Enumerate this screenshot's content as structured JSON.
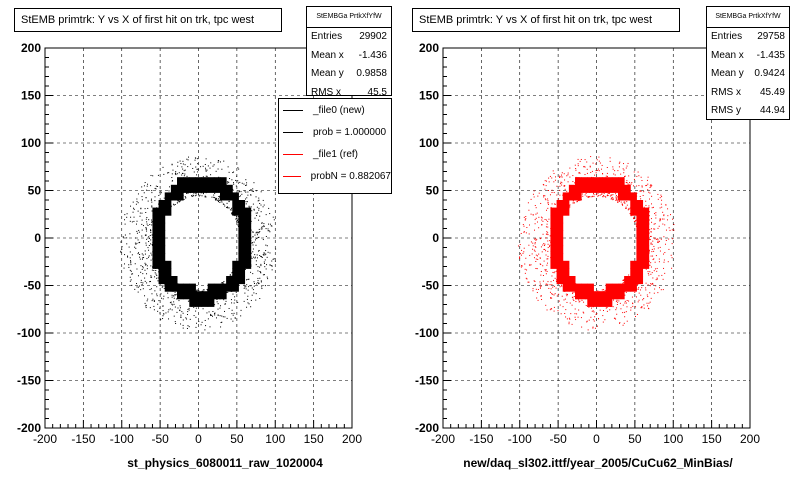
{
  "chart_data": [
    {
      "type": "scatter",
      "title": "StEMB primtrk: Y vs X of first hit on trk, tpc west",
      "xlabel": "st_physics_6080011_raw_1020004",
      "ylabel": "",
      "xlim": [
        -200,
        200
      ],
      "ylim": [
        -200,
        200
      ],
      "x_ticks": [
        -200,
        -150,
        -100,
        -50,
        0,
        50,
        100,
        150,
        200
      ],
      "y_ticks": [
        -200,
        -150,
        -100,
        -50,
        0,
        50,
        100,
        150,
        200
      ],
      "grid": true,
      "marker_color": "#000000",
      "ring": {
        "x_range": [
          -60,
          60
        ],
        "y_range": [
          -70,
          60
        ],
        "outer_noise_range": [
          -110,
          110
        ]
      },
      "stats": {
        "header": "StEMBGa PrtkXfYfW",
        "rows": [
          {
            "label": "Entries",
            "value": "29902"
          },
          {
            "label": "Mean x",
            "value": "-1.436"
          },
          {
            "label": "Mean y",
            "value": "0.9858"
          },
          {
            "label": "RMS x",
            "value": "45.5"
          }
        ]
      },
      "legend": {
        "placement": "top-right",
        "entries": [
          {
            "label": "_file0 (new)",
            "color": "#000000"
          },
          {
            "label": "prob = 1.000000",
            "color": "#000000"
          },
          {
            "label": "_file1 (ref)",
            "color": "#ff0000"
          },
          {
            "label": "probN = 0.882067",
            "color": "#ff0000"
          }
        ]
      }
    },
    {
      "type": "scatter",
      "title": "StEMB primtrk: Y vs X of first hit on trk, tpc west",
      "xlabel": "new/daq_sl302.ittf/year_2005/CuCu62_MinBias/",
      "ylabel": "",
      "xlim": [
        -200,
        200
      ],
      "ylim": [
        -200,
        200
      ],
      "x_ticks": [
        -200,
        -150,
        -100,
        -50,
        0,
        50,
        100,
        150,
        200
      ],
      "y_ticks": [
        -200,
        -150,
        -100,
        -50,
        0,
        50,
        100,
        150,
        200
      ],
      "grid": true,
      "marker_color": "#ff0000",
      "ring": {
        "x_range": [
          -60,
          60
        ],
        "y_range": [
          -70,
          60
        ],
        "outer_noise_range": [
          -110,
          110
        ]
      },
      "stats": {
        "header": "StEMBGa PrtkXfYfW",
        "rows": [
          {
            "label": "Entries",
            "value": "29758"
          },
          {
            "label": "Mean x",
            "value": "-1.435"
          },
          {
            "label": "Mean y",
            "value": "0.9424"
          },
          {
            "label": "RMS x",
            "value": "45.49"
          },
          {
            "label": "RMS y",
            "value": "44.94"
          }
        ]
      }
    }
  ]
}
